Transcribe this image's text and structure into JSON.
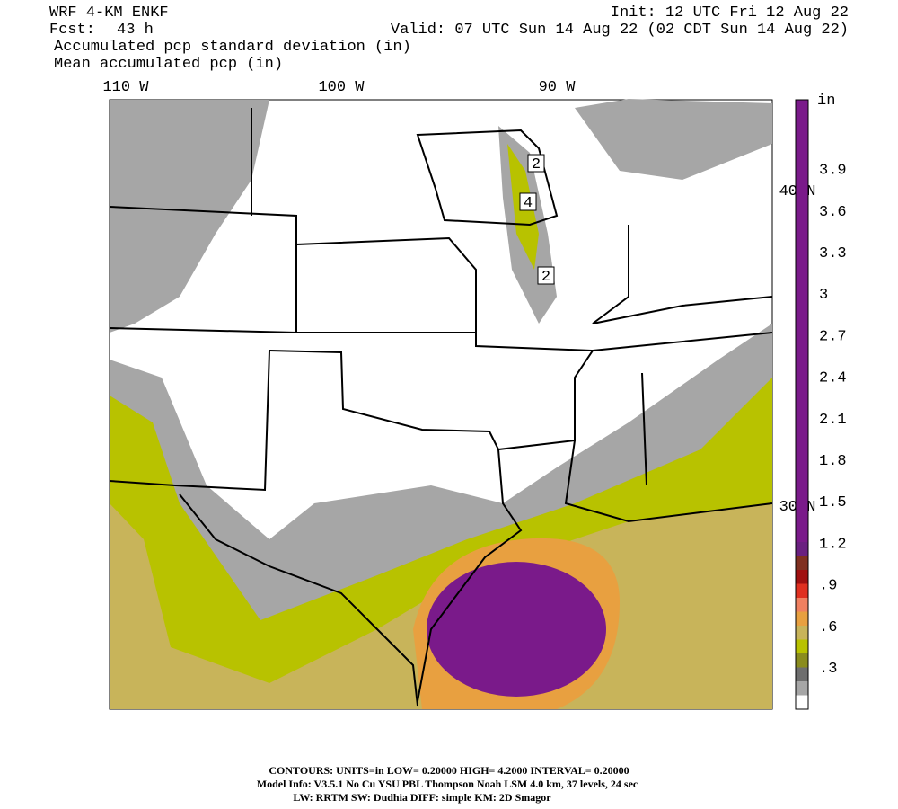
{
  "header": {
    "model": "WRF 4-KM ENKF",
    "init": "Init: 12 UTC Fri 12 Aug 22",
    "fcst_label": "Fcst:",
    "fcst_value": "43 h",
    "valid": "Valid: 07 UTC Sun 14 Aug 22 (02 CDT Sun 14 Aug 22)",
    "field1": "Accumulated pcp standard deviation (in)",
    "field2": "Mean accumulated pcp (in)"
  },
  "map": {
    "lon_labels": [
      "110 W",
      "100 W",
      "90 W"
    ],
    "lat_labels": [
      "40 N",
      "30 N"
    ],
    "contour_labels": [
      "2",
      "4",
      "2"
    ]
  },
  "colorbar": {
    "unit": "in",
    "labels": [
      ".3",
      ".6",
      ".9",
      "1.2",
      "1.5",
      "1.8",
      "2.1",
      "2.4",
      "2.7",
      "3",
      "3.3",
      "3.6",
      "3.9"
    ],
    "colors": [
      "#ffffff",
      "#a6a6a6",
      "#6e6e6e",
      "#8a8c1e",
      "#b8c200",
      "#c8b45a",
      "#e8a040",
      "#f08060",
      "#e03020",
      "#a01010",
      "#803020",
      "#6a2080",
      "#7a1a8a"
    ]
  },
  "footer": {
    "line1": "CONTOURS:  UNITS=in  LOW= 0.20000       HIGH=  4.2000       INTERVAL=  0.20000",
    "line2": "Model Info: V3.5.1    No Cu    YSU PBL  Thompson      Noah LSM   4.0 km,  37 levels,    24 sec",
    "line3": "LW: RRTM  SW: Dudhia   DIFF: simple  KM: 2D Smagor"
  }
}
